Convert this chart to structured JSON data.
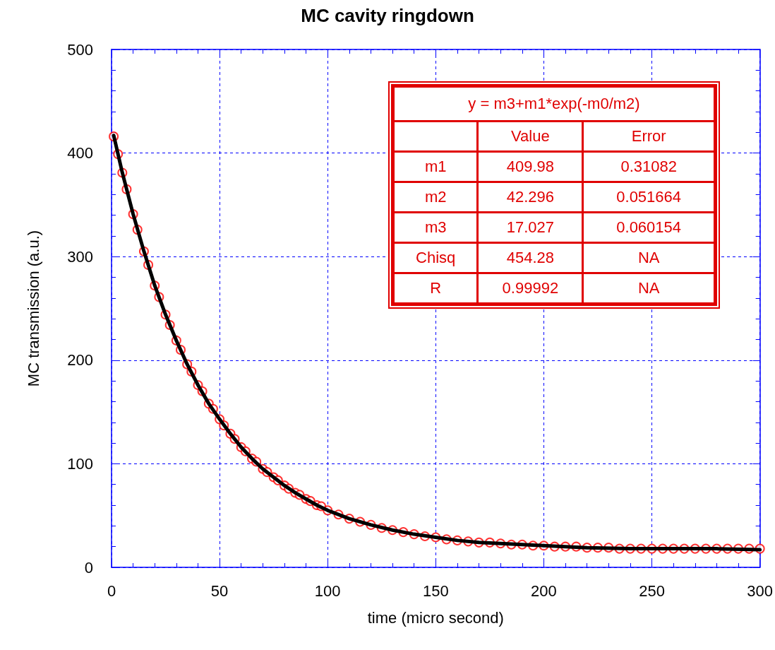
{
  "chart_data": {
    "type": "scatter",
    "title": "MC cavity ringdown",
    "xlabel": "time (micro second)",
    "ylabel": "MC transmission (a.u.)",
    "xlim": [
      0,
      300
    ],
    "xticks": [
      0,
      50,
      100,
      150,
      200,
      250,
      300
    ],
    "ylim": [
      0,
      500
    ],
    "yticks": [
      0,
      100,
      200,
      300,
      400,
      500
    ],
    "grid": true,
    "series": [
      {
        "marker": "circle",
        "color": "#ff0000",
        "x": [
          1,
          3,
          5,
          7,
          10,
          12,
          15,
          17,
          20,
          22,
          25,
          27,
          30,
          32,
          35,
          37,
          40,
          42,
          45,
          47,
          50,
          52,
          55,
          57,
          60,
          62,
          65,
          67,
          70,
          72,
          75,
          77,
          80,
          82,
          85,
          87,
          90,
          92,
          95,
          97,
          100,
          105,
          110,
          115,
          120,
          125,
          130,
          135,
          140,
          145,
          150,
          155,
          160,
          165,
          170,
          175,
          180,
          185,
          190,
          195,
          200,
          205,
          210,
          215,
          220,
          225,
          230,
          235,
          240,
          245,
          250,
          255,
          260,
          265,
          270,
          275,
          280,
          285,
          290,
          295,
          300
        ],
        "values": [
          416,
          399,
          381,
          365,
          341,
          326,
          305,
          292,
          272,
          261,
          244,
          234,
          219,
          210,
          196,
          189,
          176,
          170,
          158,
          153,
          143,
          137,
          129,
          124,
          116,
          112,
          105,
          102,
          95,
          92,
          87,
          84,
          79,
          76,
          72,
          70,
          66,
          64,
          60,
          59,
          55,
          51,
          47,
          44,
          41,
          38,
          36,
          34,
          32,
          30,
          29,
          27,
          26,
          25,
          24,
          24,
          23,
          22,
          22,
          21,
          21,
          20,
          20,
          20,
          19,
          19,
          19,
          18,
          18,
          18,
          18,
          18,
          18,
          18,
          18,
          18,
          18,
          18,
          18,
          18,
          18
        ]
      },
      {
        "type": "line",
        "marker": "none",
        "line_style": "solid",
        "color": "#000000",
        "x": [
          1,
          5,
          10,
          15,
          20,
          25,
          30,
          35,
          40,
          45,
          50,
          55,
          60,
          65,
          70,
          75,
          80,
          85,
          90,
          95,
          100,
          110,
          120,
          130,
          140,
          150,
          160,
          170,
          180,
          190,
          200,
          220,
          240,
          260,
          280,
          300
        ],
        "values": [
          417,
          381,
          341,
          305,
          272,
          244,
          219,
          196,
          176,
          158,
          143,
          129,
          116,
          105,
          95,
          87,
          79,
          72,
          66,
          60,
          55,
          47,
          41,
          36,
          32,
          29,
          26,
          24,
          23,
          22,
          21,
          19,
          18,
          18,
          18,
          17
        ]
      }
    ],
    "annotations": [
      "y = m3+m1*exp(-m0/m2)",
      "Value",
      "Error",
      "m1",
      "409.98",
      "0.31082",
      "m2",
      "42.296",
      "0.051664",
      "m3",
      "17.027",
      "0.060154",
      "Chisq",
      "454.28",
      "NA",
      "R",
      "0.99992",
      "NA"
    ]
  }
}
